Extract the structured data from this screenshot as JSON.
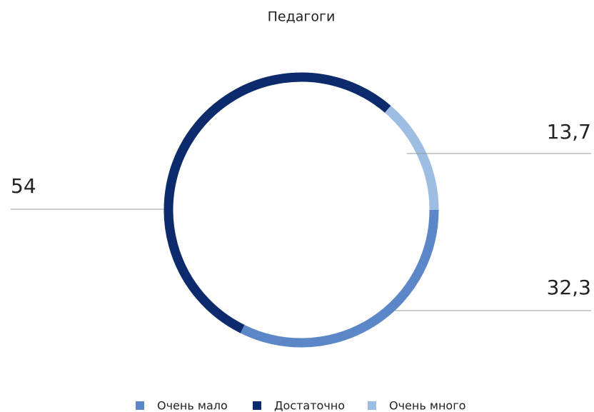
{
  "chart_data": {
    "type": "donut",
    "title": "Педагоги",
    "categories": [
      "Очень мало",
      "Достаточно",
      "Очень много"
    ],
    "values": [
      32.3,
      54,
      13.7
    ],
    "value_labels": [
      "32,3",
      "54",
      "13,7"
    ],
    "colors": [
      "#5b87c8",
      "#0c2a6c",
      "#9dbde3"
    ],
    "legend": "bottom"
  }
}
